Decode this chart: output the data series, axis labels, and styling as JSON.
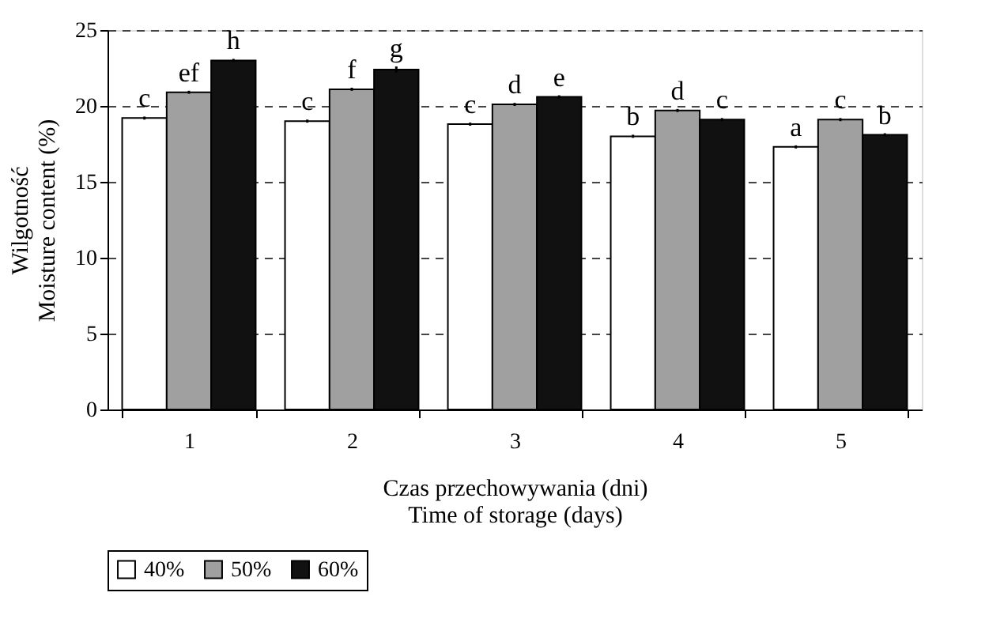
{
  "chart_data": {
    "type": "bar",
    "xlabel": "Czas przechowywania (dni)\nTime of storage (days)",
    "ylabel": "Wilgotność\nMoisture content (%)",
    "categories": [
      "1",
      "2",
      "3",
      "4",
      "5"
    ],
    "series": [
      {
        "name": "40%",
        "color": "#ffffff",
        "values": [
          19.2,
          19.0,
          18.8,
          18.0,
          17.3
        ],
        "errors": [
          0.1,
          0.1,
          0.1,
          0.1,
          0.1
        ],
        "value_labels": [
          "c",
          "c",
          "c",
          "b",
          "a"
        ]
      },
      {
        "name": "50%",
        "color": "#a0a0a0",
        "values": [
          20.9,
          21.1,
          20.1,
          19.7,
          19.1
        ],
        "errors": [
          0.1,
          0.1,
          0.1,
          0.1,
          0.1
        ],
        "value_labels": [
          "ef",
          "f",
          "d",
          "d",
          "c"
        ]
      },
      {
        "name": "60%",
        "color": "#111111",
        "values": [
          23.0,
          22.4,
          20.6,
          19.1,
          18.1
        ],
        "errors": [
          0.1,
          0.2,
          0.1,
          0.1,
          0.1
        ],
        "value_labels": [
          "h",
          "g",
          "e",
          "c",
          "b"
        ]
      }
    ],
    "ylim": [
      0,
      25
    ],
    "yticks": [
      0,
      5,
      10,
      15,
      20,
      25
    ],
    "grid": "y",
    "legend": "bottom"
  }
}
